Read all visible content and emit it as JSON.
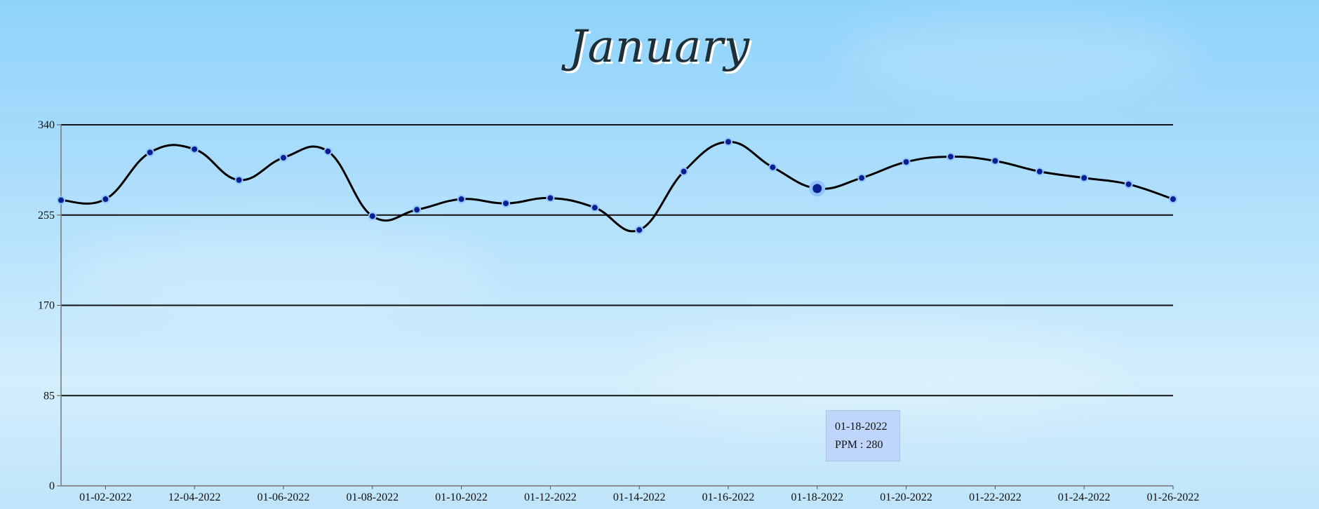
{
  "chart_data": {
    "type": "line",
    "title": "January",
    "xlabel": "",
    "ylabel": "",
    "ylim": [
      0,
      340
    ],
    "y_ticks": [
      0,
      85,
      170,
      255,
      340
    ],
    "grid": "horizontal",
    "x_tick_labels": [
      "01-02-2022",
      "12-04-2022",
      "01-06-2022",
      "01-08-2022",
      "01-10-2022",
      "01-12-2022",
      "01-14-2022",
      "01-16-2022",
      "01-18-2022",
      "01-20-2022",
      "01-22-2022",
      "01-24-2022",
      "01-26-2022"
    ],
    "line_color": "#000000",
    "point_color": "#0a1f8f",
    "point_border_color": "#8fc4ff",
    "series": [
      {
        "values": [
          269,
          270,
          314,
          317,
          288,
          309,
          315,
          254,
          260,
          270,
          266,
          271,
          262,
          241,
          296,
          324,
          300,
          280,
          290,
          305,
          310,
          306,
          296,
          290,
          284,
          270
        ]
      }
    ],
    "active_point_index": 17
  },
  "tooltip": {
    "date": "01-18-2022",
    "value_text": "PPM : 280"
  }
}
